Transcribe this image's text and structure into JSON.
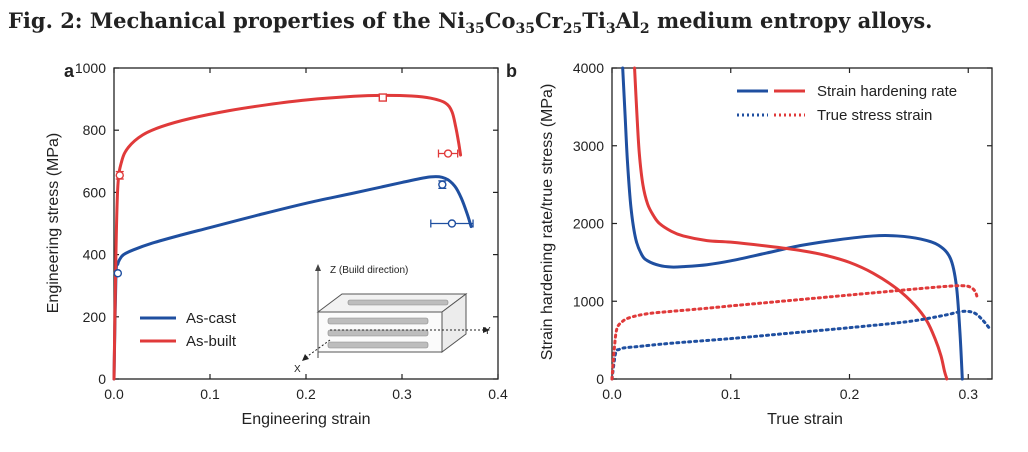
{
  "figure": {
    "title_prefix": "Fig. 2: ",
    "title_parts": [
      {
        "t": "Mechanical properties of the Ni",
        "sub": false
      },
      {
        "t": "35",
        "sub": true
      },
      {
        "t": "Co",
        "sub": false
      },
      {
        "t": "35",
        "sub": true
      },
      {
        "t": "Cr",
        "sub": false
      },
      {
        "t": "25",
        "sub": true
      },
      {
        "t": "Ti",
        "sub": false
      },
      {
        "t": "3",
        "sub": true
      },
      {
        "t": "Al",
        "sub": false
      },
      {
        "t": "2",
        "sub": true
      },
      {
        "t": " medium entropy alloys.",
        "sub": false
      }
    ]
  },
  "colors": {
    "blue": "#1f4fa0",
    "red": "#e03a3a",
    "axis": "#222222"
  },
  "chart_data": [
    {
      "panel": "a",
      "type": "line",
      "xlabel": "Engineering strain",
      "ylabel": "Engineering stress (MPa)",
      "xlim": [
        0.0,
        0.4
      ],
      "ylim": [
        0,
        1000
      ],
      "xticks": [
        "0.0",
        "0.1",
        "0.2",
        "0.3",
        "0.4"
      ],
      "yticks": [
        "0",
        "200",
        "400",
        "600",
        "800",
        "1000"
      ],
      "xtick_values": [
        0.0,
        0.1,
        0.2,
        0.3,
        0.4
      ],
      "ytick_values": [
        0,
        200,
        400,
        600,
        800,
        1000
      ],
      "legend_position": "bottom-left",
      "series": [
        {
          "name": "As-cast",
          "color": "#1f4fa0",
          "x": [
            0.0,
            0.002,
            0.004,
            0.006,
            0.01,
            0.02,
            0.04,
            0.07,
            0.1,
            0.15,
            0.2,
            0.25,
            0.3,
            0.33,
            0.345,
            0.355,
            0.362,
            0.368,
            0.372
          ],
          "y": [
            0,
            330,
            370,
            385,
            400,
            415,
            437,
            463,
            487,
            527,
            565,
            598,
            632,
            650,
            645,
            620,
            580,
            530,
            490
          ]
        },
        {
          "name": "As-built",
          "color": "#e03a3a",
          "x": [
            0.0,
            0.002,
            0.004,
            0.008,
            0.015,
            0.03,
            0.05,
            0.08,
            0.12,
            0.16,
            0.2,
            0.25,
            0.28,
            0.31,
            0.33,
            0.345,
            0.352,
            0.356,
            0.359,
            0.361
          ],
          "y": [
            0,
            400,
            620,
            700,
            745,
            785,
            812,
            838,
            863,
            882,
            897,
            909,
            912,
            910,
            903,
            888,
            860,
            810,
            760,
            720
          ]
        }
      ],
      "markers": [
        {
          "series": "As-cast",
          "shape": "circle",
          "x": 0.004,
          "y": 340
        },
        {
          "series": "As-cast",
          "shape": "circle",
          "x": 0.342,
          "y": 625,
          "yerr": 12
        },
        {
          "series": "As-cast",
          "shape": "circle",
          "x": 0.352,
          "y": 500,
          "xerr": 0.022
        },
        {
          "series": "As-built",
          "shape": "circle",
          "x": 0.006,
          "y": 655,
          "yerr": 12
        },
        {
          "series": "As-built",
          "shape": "square",
          "x": 0.28,
          "y": 905
        },
        {
          "series": "As-built",
          "shape": "circle",
          "x": 0.348,
          "y": 725,
          "xerr": 0.01
        }
      ],
      "inset": {
        "z_label": "Z (Build direction)",
        "x_label": "X",
        "y_label": "Y"
      }
    },
    {
      "panel": "b",
      "type": "line",
      "xlabel": "True strain",
      "ylabel": "Strain hardening rate/true stress (MPa)",
      "xlim": [
        0.0,
        0.32
      ],
      "ylim": [
        0,
        4000
      ],
      "xticks": [
        "0.0",
        "0.1",
        "0.2",
        "0.3"
      ],
      "yticks": [
        "0",
        "1000",
        "2000",
        "3000",
        "4000"
      ],
      "xtick_values": [
        0.0,
        0.1,
        0.2,
        0.3
      ],
      "ytick_values": [
        0,
        1000,
        2000,
        3000,
        4000
      ],
      "legend_position": "top-right",
      "legend": [
        {
          "label": "Strain hardening rate",
          "style": "solid"
        },
        {
          "label": "True stress strain",
          "style": "dotted"
        }
      ],
      "series": [
        {
          "name": "Strain hardening rate (As-cast)",
          "color": "#1f4fa0",
          "style": "solid",
          "x": [
            0.009,
            0.011,
            0.013,
            0.016,
            0.02,
            0.025,
            0.03,
            0.04,
            0.05,
            0.06,
            0.08,
            0.1,
            0.13,
            0.16,
            0.19,
            0.22,
            0.24,
            0.26,
            0.275,
            0.285,
            0.29,
            0.293,
            0.295
          ],
          "y": [
            4000,
            3400,
            2800,
            2200,
            1800,
            1600,
            1520,
            1460,
            1440,
            1445,
            1470,
            1520,
            1620,
            1720,
            1790,
            1840,
            1840,
            1800,
            1720,
            1550,
            1200,
            600,
            0
          ]
        },
        {
          "name": "Strain hardening rate (As-built)",
          "color": "#e03a3a",
          "style": "solid",
          "x": [
            0.019,
            0.021,
            0.023,
            0.026,
            0.03,
            0.035,
            0.04,
            0.05,
            0.06,
            0.08,
            0.1,
            0.13,
            0.16,
            0.18,
            0.2,
            0.22,
            0.24,
            0.255,
            0.265,
            0.272,
            0.277,
            0.28,
            0.282
          ],
          "y": [
            4000,
            3400,
            2900,
            2500,
            2250,
            2100,
            2000,
            1900,
            1840,
            1780,
            1760,
            1710,
            1650,
            1590,
            1500,
            1360,
            1160,
            950,
            750,
            520,
            300,
            100,
            0
          ]
        },
        {
          "name": "True stress strain (As-cast)",
          "color": "#1f4fa0",
          "style": "dotted",
          "x": [
            0.0,
            0.003,
            0.006,
            0.01,
            0.02,
            0.05,
            0.1,
            0.15,
            0.2,
            0.25,
            0.28,
            0.295,
            0.305,
            0.312,
            0.318
          ],
          "y": [
            0,
            330,
            380,
            400,
            415,
            460,
            520,
            590,
            660,
            740,
            820,
            870,
            850,
            760,
            650
          ]
        },
        {
          "name": "True stress strain (As-built)",
          "color": "#e03a3a",
          "style": "dotted",
          "x": [
            0.0,
            0.002,
            0.004,
            0.008,
            0.015,
            0.03,
            0.05,
            0.08,
            0.1,
            0.15,
            0.2,
            0.25,
            0.28,
            0.295,
            0.302,
            0.306,
            0.308
          ],
          "y": [
            0,
            400,
            640,
            730,
            790,
            840,
            870,
            910,
            940,
            1010,
            1080,
            1150,
            1190,
            1200,
            1180,
            1120,
            1020
          ]
        }
      ]
    }
  ]
}
